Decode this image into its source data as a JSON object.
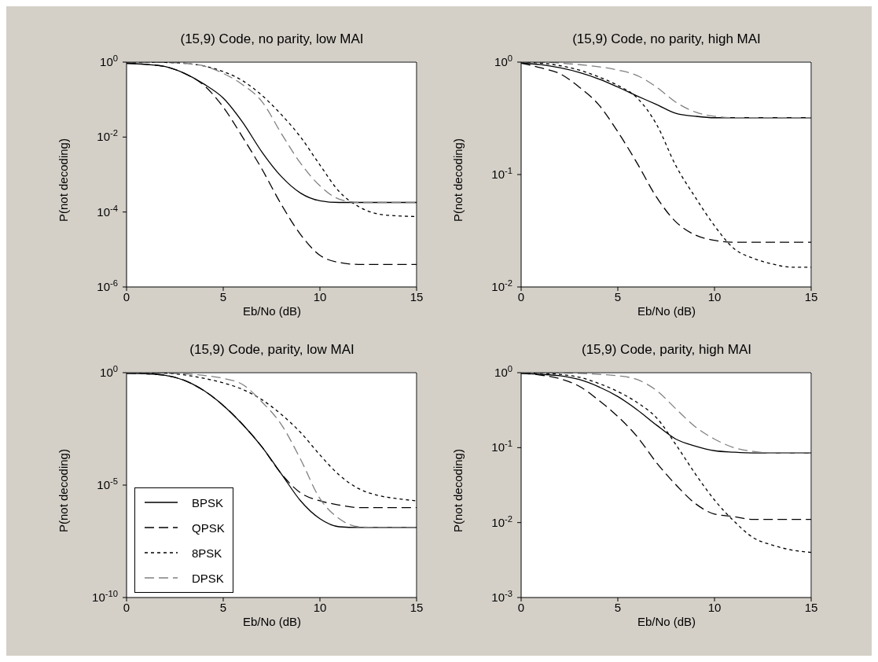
{
  "chart_data": [
    {
      "type": "line",
      "title": "(15,9) Code, no parity, low MAI",
      "xlabel": "Eb/No (dB)",
      "ylabel": "P(not decoding)",
      "log": "y",
      "grid": false,
      "legend": false,
      "x": [
        0,
        1,
        2,
        3,
        4,
        5,
        6,
        7,
        8,
        9,
        10,
        11,
        12,
        13,
        14,
        15
      ],
      "xlim": [
        0,
        15
      ],
      "xticks": [
        0,
        5,
        10,
        15
      ],
      "ylim": [
        1e-06,
        1
      ],
      "yticks": [
        {
          "value": 1,
          "label": "10$^{0}$"
        },
        {
          "value": 0.01,
          "label": "10$^{-2}$"
        },
        {
          "value": 0.0001,
          "label": "10$^{-4}$"
        },
        {
          "value": 1e-06,
          "label": "10$^{-6}$"
        }
      ],
      "series": [
        {
          "color": "#000000",
          "line_style": "solid",
          "values": [
            0.93,
            0.87,
            0.76,
            0.5,
            0.26,
            0.11,
            0.025,
            0.004,
            0.00089,
            0.00032,
            0.0002,
            0.00018,
            0.00018,
            0.00018,
            0.00018,
            0.00018
          ]
        },
        {
          "color": "#000000",
          "line_style": "dashed",
          "values": [
            0.93,
            0.87,
            0.76,
            0.5,
            0.24,
            0.063,
            0.01,
            0.0014,
            0.00016,
            2.5e-05,
            7e-06,
            4.5e-06,
            4e-06,
            4e-06,
            4e-06,
            4e-06
          ]
        },
        {
          "color": "#000000",
          "line_style": "dotted",
          "values": [
            1,
            1,
            0.98,
            0.93,
            0.79,
            0.56,
            0.32,
            0.13,
            0.04,
            0.01,
            0.0018,
            0.00035,
            0.00014,
            8.9e-05,
            7.9e-05,
            7.6e-05
          ]
        },
        {
          "color": "#808080",
          "line_style": "dashed",
          "values": [
            1,
            1,
            0.98,
            0.93,
            0.79,
            0.5,
            0.25,
            0.089,
            0.0126,
            0.002,
            0.0005,
            0.00022,
            0.00018,
            0.00018,
            0.00018,
            0.00018
          ]
        }
      ]
    },
    {
      "type": "line",
      "title": "(15,9) Code, no parity, high MAI",
      "xlabel": "Eb/No (dB)",
      "ylabel": "P(not decoding)",
      "log": "y",
      "grid": false,
      "legend": false,
      "x": [
        0,
        1,
        2,
        3,
        4,
        5,
        6,
        7,
        8,
        9,
        10,
        11,
        12,
        13,
        14,
        15
      ],
      "xlim": [
        0,
        15
      ],
      "xticks": [
        0,
        5,
        10,
        15
      ],
      "ylim": [
        0.01,
        1
      ],
      "yticks": [
        {
          "value": 1,
          "label": "10$^{0}$"
        },
        {
          "value": 0.1,
          "label": "10$^{-1}$"
        },
        {
          "value": 0.01,
          "label": "10$^{-2}$"
        }
      ],
      "series": [
        {
          "color": "#000000",
          "line_style": "solid",
          "values": [
            0.98,
            0.95,
            0.89,
            0.81,
            0.71,
            0.6,
            0.5,
            0.42,
            0.35,
            0.33,
            0.32,
            0.32,
            0.32,
            0.32,
            0.32,
            0.32
          ]
        },
        {
          "color": "#000000",
          "line_style": "dashed",
          "values": [
            0.98,
            0.89,
            0.79,
            0.6,
            0.42,
            0.24,
            0.126,
            0.063,
            0.038,
            0.029,
            0.026,
            0.025,
            0.025,
            0.025,
            0.025,
            0.025
          ]
        },
        {
          "color": "#000000",
          "line_style": "dotted",
          "values": [
            1,
            0.98,
            0.93,
            0.85,
            0.74,
            0.62,
            0.48,
            0.28,
            0.12,
            0.063,
            0.035,
            0.022,
            0.018,
            0.016,
            0.015,
            0.015
          ]
        },
        {
          "color": "#808080",
          "line_style": "dashed",
          "values": [
            1,
            1,
            0.98,
            0.95,
            0.91,
            0.85,
            0.76,
            0.6,
            0.44,
            0.36,
            0.33,
            0.32,
            0.32,
            0.32,
            0.32,
            0.32
          ]
        }
      ]
    },
    {
      "type": "line",
      "title": "(15,9) Code, parity, low MAI",
      "xlabel": "Eb/No (dB)",
      "ylabel": "P(not decoding)",
      "log": "y",
      "grid": false,
      "legend": "bottom left",
      "x": [
        0,
        1,
        2,
        3,
        4,
        5,
        6,
        7,
        8,
        9,
        10,
        11,
        12,
        13,
        14,
        15
      ],
      "xlim": [
        0,
        15
      ],
      "xticks": [
        0,
        5,
        10,
        15
      ],
      "ylim": [
        1e-10,
        1
      ],
      "yticks": [
        {
          "value": 1,
          "label": "10$^{0}$"
        },
        {
          "value": 1e-05,
          "label": "10$^{-5}$"
        },
        {
          "value": 1e-10,
          "label": "10$^{-10}$"
        }
      ],
      "series": [
        {
          "name": "BPSK",
          "color": "#000000",
          "line_style": "solid",
          "values": [
            0.93,
            0.89,
            0.76,
            0.45,
            0.16,
            0.035,
            0.005,
            0.0005,
            3.2e-05,
            2e-06,
            3.2e-07,
            1.4e-07,
            1.3e-07,
            1.3e-07,
            1.3e-07,
            1.3e-07
          ]
        },
        {
          "name": "QPSK",
          "color": "#000000",
          "line_style": "dashed",
          "values": [
            0.93,
            0.89,
            0.76,
            0.45,
            0.16,
            0.035,
            0.005,
            0.0005,
            3.2e-05,
            4.5e-06,
            2e-06,
            1.3e-06,
            1e-06,
            1e-06,
            1e-06,
            1e-06
          ]
        },
        {
          "name": "8PSK",
          "color": "#000000",
          "line_style": "dotted",
          "values": [
            1,
            1,
            0.95,
            0.79,
            0.56,
            0.35,
            0.18,
            0.063,
            0.014,
            0.0022,
            0.00022,
            2.8e-05,
            7e-06,
            3.5e-06,
            2.5e-06,
            2e-06
          ]
        },
        {
          "name": "DPSK",
          "color": "#808080",
          "line_style": "dashed",
          "values": [
            1,
            1,
            0.95,
            0.89,
            0.76,
            0.56,
            0.3,
            0.05,
            0.005,
            0.00014,
            2.5e-06,
            3.2e-07,
            1.4e-07,
            1.3e-07,
            1.3e-07,
            1.3e-07
          ]
        }
      ]
    },
    {
      "type": "line",
      "title": "(15,9) Code, parity, high MAI",
      "xlabel": "Eb/No (dB)",
      "ylabel": "P(not decoding)",
      "log": "y",
      "grid": false,
      "legend": false,
      "x": [
        0,
        1,
        2,
        3,
        4,
        5,
        6,
        7,
        8,
        9,
        10,
        11,
        12,
        13,
        14,
        15
      ],
      "xlim": [
        0,
        15
      ],
      "xticks": [
        0,
        5,
        10,
        15
      ],
      "ylim": [
        0.001,
        1
      ],
      "yticks": [
        {
          "value": 1,
          "label": "10$^{0}$"
        },
        {
          "value": 0.1,
          "label": "10$^{-1}$"
        },
        {
          "value": 0.01,
          "label": "10$^{-2}$"
        },
        {
          "value": 0.001,
          "label": "10$^{-3}$"
        }
      ],
      "series": [
        {
          "color": "#000000",
          "line_style": "solid",
          "values": [
            0.98,
            0.95,
            0.91,
            0.81,
            0.65,
            0.48,
            0.32,
            0.2,
            0.13,
            0.105,
            0.091,
            0.087,
            0.085,
            0.085,
            0.085,
            0.085
          ]
        },
        {
          "color": "#000000",
          "line_style": "dashed",
          "values": [
            0.98,
            0.93,
            0.83,
            0.66,
            0.43,
            0.26,
            0.14,
            0.063,
            0.032,
            0.018,
            0.013,
            0.012,
            0.011,
            0.011,
            0.011,
            0.011
          ]
        },
        {
          "color": "#000000",
          "line_style": "dotted",
          "values": [
            1,
            0.98,
            0.95,
            0.87,
            0.72,
            0.56,
            0.4,
            0.25,
            0.11,
            0.045,
            0.02,
            0.0105,
            0.0063,
            0.005,
            0.0043,
            0.004
          ]
        },
        {
          "color": "#808080",
          "line_style": "dashed",
          "values": [
            1,
            1,
            1,
            0.98,
            0.95,
            0.91,
            0.81,
            0.58,
            0.33,
            0.19,
            0.13,
            0.1,
            0.089,
            0.085,
            0.085,
            0.085
          ]
        }
      ]
    }
  ]
}
